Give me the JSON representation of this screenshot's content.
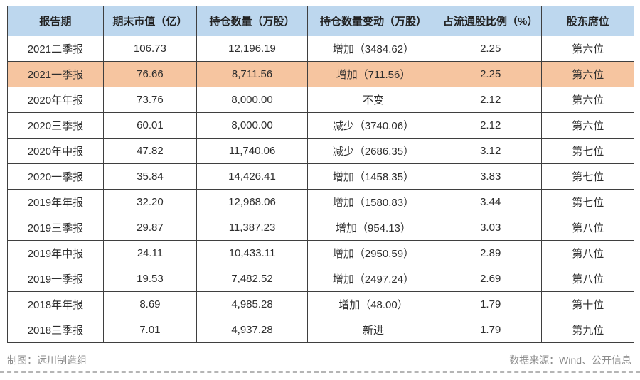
{
  "chart_data": {
    "type": "table",
    "title": "",
    "columns": [
      "报告期",
      "期末市值（亿）",
      "持仓数量（万股）",
      "持仓数量变动（万股）",
      "占流通股比例（%）",
      "股东席位"
    ],
    "rows": [
      [
        "2021二季报",
        "106.73",
        "12,196.19",
        "增加（3484.62）",
        "2.25",
        "第六位"
      ],
      [
        "2021一季报",
        "76.66",
        "8,711.56",
        "增加（711.56）",
        "2.25",
        "第六位"
      ],
      [
        "2020年年报",
        "73.76",
        "8,000.00",
        "不变",
        "2.12",
        "第六位"
      ],
      [
        "2020三季报",
        "60.01",
        "8,000.00",
        "减少（3740.06）",
        "2.12",
        "第六位"
      ],
      [
        "2020年中报",
        "47.82",
        "11,740.06",
        "减少（2686.35）",
        "3.12",
        "第七位"
      ],
      [
        "2020一季报",
        "35.84",
        "14,426.41",
        "增加（1458.35）",
        "3.83",
        "第七位"
      ],
      [
        "2019年年报",
        "32.20",
        "12,968.06",
        "增加（1580.83）",
        "3.44",
        "第七位"
      ],
      [
        "2019三季报",
        "29.87",
        "11,387.23",
        "增加（954.13）",
        "3.03",
        "第八位"
      ],
      [
        "2019年中报",
        "24.11",
        "10,433.11",
        "增加（2950.59）",
        "2.89",
        "第八位"
      ],
      [
        "2019一季报",
        "19.53",
        "7,482.52",
        "增加（2497.24）",
        "2.69",
        "第八位"
      ],
      [
        "2018年年报",
        "8.69",
        "4,985.28",
        "增加（48.00）",
        "1.79",
        "第十位"
      ],
      [
        "2018三季报",
        "7.01",
        "4,937.28",
        "新进",
        "1.79",
        "第九位"
      ]
    ],
    "highlighted_row_index": 1,
    "layout_hints": {
      "grid": true,
      "header_position": "top"
    }
  },
  "footer": {
    "credit": "制图：远川制造组",
    "source": "数据来源：Wind、公开信息"
  },
  "colors": {
    "header_bg": "#BDD7EE",
    "highlight_bg": "#F6C5A0",
    "border": "#3F3F3F",
    "text": "#2E2E2E",
    "footer_text": "#8C8C8C",
    "dash": "#B5B5B5"
  }
}
